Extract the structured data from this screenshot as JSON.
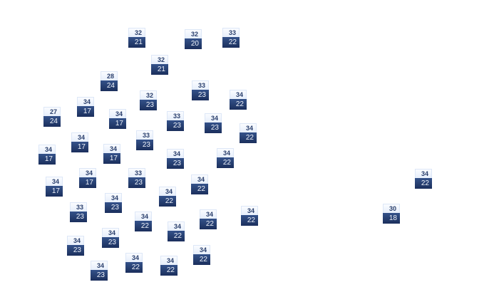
{
  "colors": {
    "marker_top": "#eef3fc",
    "marker_bottom": "#243c6e",
    "high_text": "#2a3f6c",
    "low_text": "#eef2fa"
  },
  "markers": [
    {
      "high": "32",
      "low": "21"
    },
    {
      "high": "32",
      "low": "20"
    },
    {
      "high": "33",
      "low": "22"
    },
    {
      "high": "32",
      "low": "21"
    },
    {
      "high": "28",
      "low": "24"
    },
    {
      "high": "33",
      "low": "23"
    },
    {
      "high": "32",
      "low": "23"
    },
    {
      "high": "34",
      "low": "22"
    },
    {
      "high": "34",
      "low": "17"
    },
    {
      "high": "27",
      "low": "24"
    },
    {
      "high": "34",
      "low": "17"
    },
    {
      "high": "33",
      "low": "23"
    },
    {
      "high": "34",
      "low": "23"
    },
    {
      "high": "34",
      "low": "22"
    },
    {
      "high": "34",
      "low": "17"
    },
    {
      "high": "33",
      "low": "23"
    },
    {
      "high": "34",
      "low": "17"
    },
    {
      "high": "34",
      "low": "17"
    },
    {
      "high": "34",
      "low": "23"
    },
    {
      "high": "34",
      "low": "22"
    },
    {
      "high": "34",
      "low": "17"
    },
    {
      "high": "33",
      "low": "23"
    },
    {
      "high": "34",
      "low": "17"
    },
    {
      "high": "34",
      "low": "22"
    },
    {
      "high": "34",
      "low": "22"
    },
    {
      "high": "34",
      "low": "23"
    },
    {
      "high": "33",
      "low": "23"
    },
    {
      "high": "34",
      "low": "22"
    },
    {
      "high": "34",
      "low": "22"
    },
    {
      "high": "34",
      "low": "22"
    },
    {
      "high": "34",
      "low": "22"
    },
    {
      "high": "34",
      "low": "23"
    },
    {
      "high": "34",
      "low": "23"
    },
    {
      "high": "34",
      "low": "22"
    },
    {
      "high": "34",
      "low": "22"
    },
    {
      "high": "34",
      "low": "22"
    },
    {
      "high": "34",
      "low": "23"
    },
    {
      "high": "34",
      "low": "22"
    },
    {
      "high": "30",
      "low": "18"
    }
  ]
}
